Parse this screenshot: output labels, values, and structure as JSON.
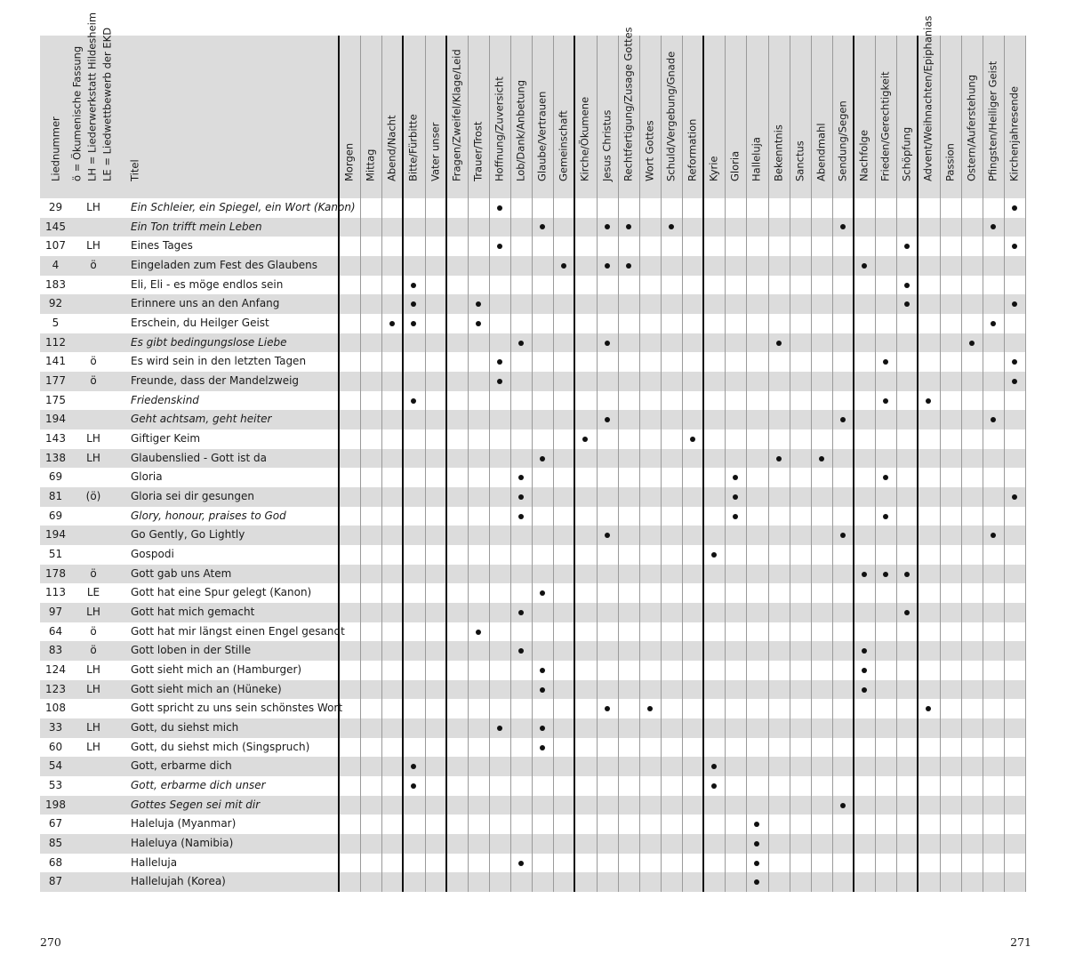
{
  "header": {
    "liednummer": "Liednummer",
    "legend": [
      "ö = Ökumenische Fassung",
      "LH = Liederwerkstatt Hildesheim",
      "LE = Liedwettbewerb der EKD"
    ],
    "titel": "Titel",
    "topics": [
      "Morgen",
      "Mittag",
      "Abend/Nacht",
      "Bitte/Fürbitte",
      "Vater unser",
      "Fragen/Zweifel/Klage/Leid",
      "Trauer/Trost",
      "Hoffnung/Zuversicht",
      "Lob/Dank/Anbetung",
      "Glaube/Vertrauen",
      "Gemeinschaft",
      "Kirche/Ökumene",
      "Jesus Christus",
      "Rechtfertigung/Zusage Gottes",
      "Wort Gottes",
      "Schuld/Vergebung/Gnade",
      "Reformation",
      "Kyrie",
      "Gloria",
      "Halleluja",
      "Bekenntnis",
      "Sanctus",
      "Abendmahl",
      "Sendung/Segen",
      "Nachfolge",
      "Frieden/Gerechtigkeit",
      "Schöpfung",
      "Advent/Weihnachten/Epiphanias",
      "Passion",
      "Ostern/Auferstehung",
      "Pfingsten/Heiliger Geist",
      "Kirchenjahresende"
    ],
    "group_starts": [
      0,
      3,
      5,
      11,
      17,
      24,
      27
    ]
  },
  "rows": [
    {
      "num": "29",
      "mark": "LH",
      "title": "Ein Schleier, ein Spiegel, ein Wort (Kanon)",
      "italic": true,
      "topics": [
        7,
        31
      ]
    },
    {
      "num": "145",
      "mark": "",
      "title": "Ein Ton trifft mein Leben",
      "italic": true,
      "topics": [
        9,
        12,
        13,
        15,
        23,
        30
      ]
    },
    {
      "num": "107",
      "mark": "LH",
      "title": "Eines Tages",
      "italic": false,
      "topics": [
        7,
        26,
        31
      ]
    },
    {
      "num": "4",
      "mark": "ö",
      "title": "Eingeladen zum Fest des Glaubens",
      "italic": false,
      "topics": [
        10,
        12,
        13,
        24
      ]
    },
    {
      "num": "183",
      "mark": "",
      "title": "Eli, Eli - es möge endlos sein",
      "italic": false,
      "topics": [
        3,
        26
      ]
    },
    {
      "num": "92",
      "mark": "",
      "title": "Erinnere uns an den Anfang",
      "italic": false,
      "topics": [
        3,
        6,
        26,
        31
      ]
    },
    {
      "num": "5",
      "mark": "",
      "title": "Erschein, du Heilger Geist",
      "italic": false,
      "topics": [
        2,
        3,
        6,
        30
      ]
    },
    {
      "num": "112",
      "mark": "",
      "title": "Es gibt bedingungslose Liebe",
      "italic": true,
      "topics": [
        8,
        12,
        20,
        29
      ]
    },
    {
      "num": "141",
      "mark": "ö",
      "title": "Es wird sein in den letzten Tagen",
      "italic": false,
      "topics": [
        7,
        25,
        31
      ]
    },
    {
      "num": "177",
      "mark": "ö",
      "title": "Freunde, dass der Mandelzweig",
      "italic": false,
      "topics": [
        7,
        31
      ]
    },
    {
      "num": "175",
      "mark": "",
      "title": "Friedenskind",
      "italic": true,
      "topics": [
        3,
        25,
        27
      ]
    },
    {
      "num": "194",
      "mark": "",
      "title": "Geht achtsam, geht heiter",
      "italic": true,
      "topics": [
        12,
        23,
        30
      ]
    },
    {
      "num": "143",
      "mark": "LH",
      "title": "Giftiger Keim",
      "italic": false,
      "topics": [
        11,
        16
      ]
    },
    {
      "num": "138",
      "mark": "LH",
      "title": "Glaubenslied - Gott ist da",
      "italic": false,
      "topics": [
        9,
        20,
        22
      ]
    },
    {
      "num": "69",
      "mark": "",
      "title": "Gloria",
      "italic": false,
      "topics": [
        8,
        18,
        25
      ]
    },
    {
      "num": "81",
      "mark": "(ö)",
      "title": "Gloria sei dir gesungen",
      "italic": false,
      "topics": [
        8,
        18,
        31
      ]
    },
    {
      "num": "69",
      "mark": "",
      "title": "Glory, honour, praises to God",
      "italic": true,
      "topics": [
        8,
        18,
        25
      ]
    },
    {
      "num": "194",
      "mark": "",
      "title": "Go Gently, Go Lightly",
      "italic": false,
      "topics": [
        12,
        23,
        30
      ]
    },
    {
      "num": "51",
      "mark": "",
      "title": "Gospodi",
      "italic": false,
      "topics": [
        17
      ]
    },
    {
      "num": "178",
      "mark": "ö",
      "title": "Gott gab uns Atem",
      "italic": false,
      "topics": [
        24,
        25,
        26
      ]
    },
    {
      "num": "113",
      "mark": "LE",
      "title": "Gott hat eine Spur gelegt (Kanon)",
      "italic": false,
      "topics": [
        9
      ]
    },
    {
      "num": "97",
      "mark": "LH",
      "title": "Gott hat mich gemacht",
      "italic": false,
      "topics": [
        8,
        26
      ]
    },
    {
      "num": "64",
      "mark": "ö",
      "title": "Gott hat mir längst einen Engel gesandt",
      "italic": false,
      "topics": [
        6
      ]
    },
    {
      "num": "83",
      "mark": "ö",
      "title": "Gott loben in der Stille",
      "italic": false,
      "topics": [
        8,
        24
      ]
    },
    {
      "num": "124",
      "mark": "LH",
      "title": "Gott sieht mich an (Hamburger)",
      "italic": false,
      "topics": [
        9,
        24
      ]
    },
    {
      "num": "123",
      "mark": "LH",
      "title": "Gott sieht mich an (Hüneke)",
      "italic": false,
      "topics": [
        9,
        24
      ]
    },
    {
      "num": "108",
      "mark": "",
      "title": "Gott spricht zu uns sein schönstes Wort",
      "italic": false,
      "topics": [
        12,
        14,
        27
      ]
    },
    {
      "num": "33",
      "mark": "LH",
      "title": "Gott, du siehst mich",
      "italic": false,
      "topics": [
        7,
        9
      ]
    },
    {
      "num": "60",
      "mark": "LH",
      "title": "Gott, du siehst mich (Singspruch)",
      "italic": false,
      "topics": [
        9
      ]
    },
    {
      "num": "54",
      "mark": "",
      "title": "Gott, erbarme dich",
      "italic": false,
      "topics": [
        3,
        17
      ]
    },
    {
      "num": "53",
      "mark": "",
      "title": "Gott, erbarme dich unser",
      "italic": true,
      "topics": [
        3,
        17
      ]
    },
    {
      "num": "198",
      "mark": "",
      "title": "Gottes Segen sei mit dir",
      "italic": true,
      "topics": [
        23
      ]
    },
    {
      "num": "67",
      "mark": "",
      "title": "Haleluja (Myanmar)",
      "italic": false,
      "topics": [
        19
      ]
    },
    {
      "num": "85",
      "mark": "",
      "title": "Haleluya (Namibia)",
      "italic": false,
      "topics": [
        19
      ]
    },
    {
      "num": "68",
      "mark": "",
      "title": "Halleluja",
      "italic": false,
      "topics": [
        8,
        19
      ]
    },
    {
      "num": "87",
      "mark": "",
      "title": "Hallelujah (Korea)",
      "italic": false,
      "topics": [
        19
      ]
    }
  ],
  "footer": {
    "page_left": "270",
    "page_right": "271"
  }
}
